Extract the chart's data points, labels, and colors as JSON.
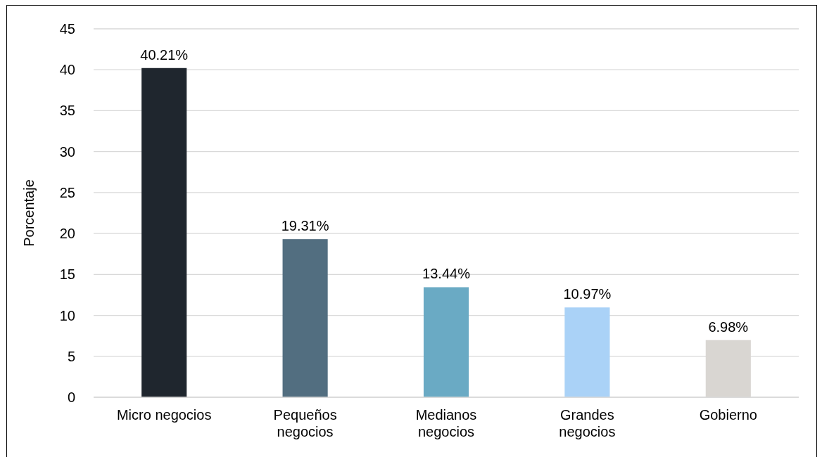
{
  "chart_data": {
    "type": "bar",
    "ylabel": "Porcentaje",
    "categories": [
      "Micro negocios",
      "Pequeños negocios",
      "Medianos negocios",
      "Grandes negocios",
      "Gobierno"
    ],
    "values": [
      40.21,
      19.31,
      13.44,
      10.97,
      6.98
    ],
    "colors": [
      "#1f262e",
      "#526e80",
      "#6aaac4",
      "#aad2f7",
      "#d9d6d2"
    ],
    "value_labels": [
      "40.21%",
      "19.31%",
      "13.44%",
      "10.97%",
      "6.98%"
    ],
    "ylim": [
      0,
      45
    ],
    "yticks": [
      0,
      5,
      10,
      15,
      20,
      25,
      30,
      35,
      40,
      45
    ],
    "grid": "y"
  }
}
